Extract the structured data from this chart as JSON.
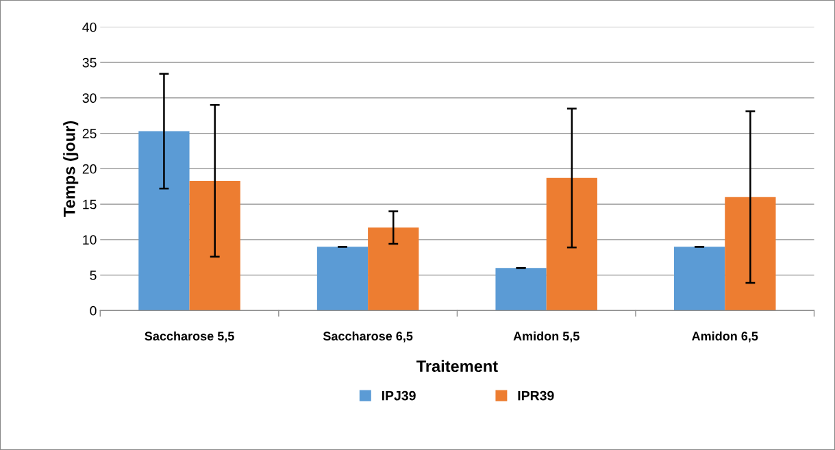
{
  "chart_data": {
    "type": "bar",
    "xlabel": "Traitement",
    "ylabel": "Temps (jour)",
    "categories": [
      "Saccharose 5,5",
      "Saccharose 6,5",
      "Amidon 5,5",
      "Amidon 6,5"
    ],
    "series": [
      {
        "name": "IPJ39",
        "color": "#5b9bd5",
        "values": [
          25.3,
          9,
          6,
          9
        ],
        "errors": [
          8.1,
          0,
          0,
          0
        ]
      },
      {
        "name": "IPR39",
        "color": "#ed7d31",
        "values": [
          18.3,
          11.7,
          18.7,
          16
        ],
        "errors": [
          10.7,
          2.3,
          9.8,
          12.1
        ]
      }
    ],
    "ylim": [
      0,
      40
    ],
    "yticks": [
      0,
      5,
      10,
      15,
      20,
      25,
      30,
      35,
      40
    ],
    "grid": "y",
    "legend": "bottom"
  }
}
